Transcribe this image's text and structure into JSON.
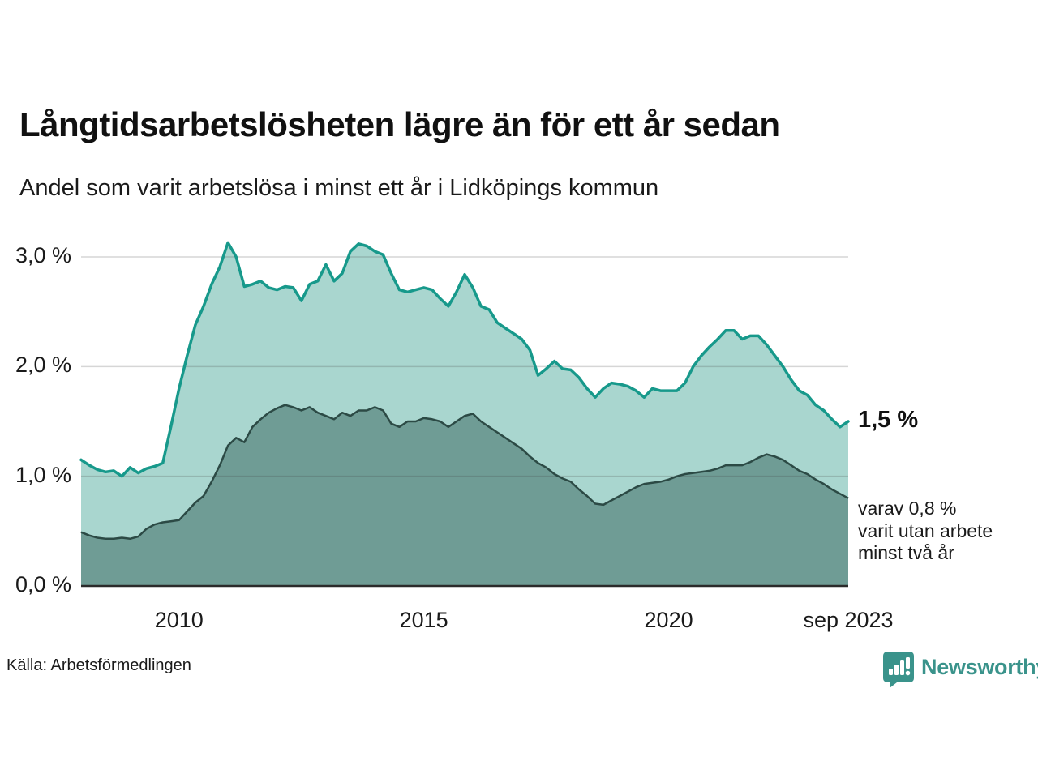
{
  "header": {
    "title": "Långtidsarbetslösheten lägre än för ett år sedan",
    "subtitle": "Andel som varit arbetslösa i minst ett år i Lidköpings kommun"
  },
  "chart_data": {
    "type": "area",
    "title": "Långtidsarbetslösheten lägre än för ett år sedan",
    "subtitle": "Andel som varit arbetslösa i minst ett år i Lidköpings kommun",
    "x_unit": "decimal_year_monthly",
    "x_range": [
      2008.0,
      2023.667
    ],
    "ylim": [
      0.0,
      3.3
    ],
    "grid": true,
    "colors": {
      "line_total": "#17998b",
      "fill_total": "#a9d6cf",
      "line_two_years": "#2c4a45",
      "fill_two_years": "#6f9c95",
      "gridline": "#d8d8d8",
      "baseline": "#2b2b2b",
      "brand_teal": "#3a938b"
    },
    "y_ticks": [
      {
        "value": 0.0,
        "label": "0,0 %"
      },
      {
        "value": 1.0,
        "label": "1,0 %"
      },
      {
        "value": 2.0,
        "label": "2,0 %"
      },
      {
        "value": 3.0,
        "label": "3,0 %"
      }
    ],
    "x_ticks": [
      {
        "value": 2010.0,
        "label": "2010"
      },
      {
        "value": 2015.0,
        "label": "2015"
      },
      {
        "value": 2020.0,
        "label": "2020"
      },
      {
        "value": 2023.667,
        "label": "sep 2023"
      }
    ],
    "x": [
      2008.0,
      2008.167,
      2008.333,
      2008.5,
      2008.667,
      2008.833,
      2009.0,
      2009.167,
      2009.333,
      2009.5,
      2009.667,
      2009.833,
      2010.0,
      2010.167,
      2010.333,
      2010.5,
      2010.667,
      2010.833,
      2011.0,
      2011.167,
      2011.333,
      2011.5,
      2011.667,
      2011.833,
      2012.0,
      2012.167,
      2012.333,
      2012.5,
      2012.667,
      2012.833,
      2013.0,
      2013.167,
      2013.333,
      2013.5,
      2013.667,
      2013.833,
      2014.0,
      2014.167,
      2014.333,
      2014.5,
      2014.667,
      2014.833,
      2015.0,
      2015.167,
      2015.333,
      2015.5,
      2015.667,
      2015.833,
      2016.0,
      2016.167,
      2016.333,
      2016.5,
      2016.667,
      2016.833,
      2017.0,
      2017.167,
      2017.333,
      2017.5,
      2017.667,
      2017.833,
      2018.0,
      2018.167,
      2018.333,
      2018.5,
      2018.667,
      2018.833,
      2019.0,
      2019.167,
      2019.333,
      2019.5,
      2019.667,
      2019.833,
      2020.0,
      2020.167,
      2020.333,
      2020.5,
      2020.667,
      2020.833,
      2021.0,
      2021.167,
      2021.333,
      2021.5,
      2021.667,
      2021.833,
      2022.0,
      2022.167,
      2022.333,
      2022.5,
      2022.667,
      2022.833,
      2023.0,
      2023.167,
      2023.333,
      2023.5,
      2023.667
    ],
    "series": [
      {
        "name": "Andel arbetslösa minst ett år",
        "end_label": "1,5 %",
        "values": [
          1.15,
          1.1,
          1.06,
          1.04,
          1.05,
          1.0,
          1.08,
          1.03,
          1.07,
          1.09,
          1.12,
          1.45,
          1.8,
          2.1,
          2.38,
          2.55,
          2.75,
          2.91,
          3.13,
          3.0,
          2.73,
          2.75,
          2.78,
          2.72,
          2.7,
          2.73,
          2.72,
          2.6,
          2.75,
          2.78,
          2.93,
          2.78,
          2.85,
          3.05,
          3.12,
          3.1,
          3.05,
          3.02,
          2.85,
          2.7,
          2.68,
          2.7,
          2.72,
          2.7,
          2.62,
          2.55,
          2.68,
          2.84,
          2.72,
          2.55,
          2.52,
          2.4,
          2.35,
          2.3,
          2.25,
          2.15,
          1.92,
          1.98,
          2.05,
          1.98,
          1.97,
          1.9,
          1.8,
          1.72,
          1.8,
          1.85,
          1.84,
          1.82,
          1.78,
          1.72,
          1.8,
          1.78,
          1.78,
          1.78,
          1.85,
          2.0,
          2.1,
          2.18,
          2.25,
          2.33,
          2.33,
          2.25,
          2.28,
          2.28,
          2.2,
          2.1,
          2.0,
          1.88,
          1.78,
          1.74,
          1.65,
          1.6,
          1.52,
          1.45,
          1.5
        ]
      },
      {
        "name": "Andel arbetslösa minst två år",
        "end_label": "varav 0,8 % varit utan arbete minst två år",
        "values": [
          0.49,
          0.46,
          0.44,
          0.43,
          0.43,
          0.44,
          0.43,
          0.45,
          0.52,
          0.56,
          0.58,
          0.59,
          0.6,
          0.68,
          0.76,
          0.82,
          0.95,
          1.1,
          1.28,
          1.35,
          1.31,
          1.45,
          1.52,
          1.58,
          1.62,
          1.65,
          1.63,
          1.6,
          1.63,
          1.58,
          1.55,
          1.52,
          1.58,
          1.55,
          1.6,
          1.6,
          1.63,
          1.6,
          1.48,
          1.45,
          1.5,
          1.5,
          1.53,
          1.52,
          1.5,
          1.45,
          1.5,
          1.55,
          1.57,
          1.5,
          1.45,
          1.4,
          1.35,
          1.3,
          1.25,
          1.18,
          1.12,
          1.08,
          1.02,
          0.98,
          0.95,
          0.88,
          0.82,
          0.75,
          0.74,
          0.78,
          0.82,
          0.86,
          0.9,
          0.93,
          0.94,
          0.95,
          0.97,
          1.0,
          1.02,
          1.03,
          1.04,
          1.05,
          1.07,
          1.1,
          1.1,
          1.1,
          1.13,
          1.17,
          1.2,
          1.18,
          1.15,
          1.1,
          1.05,
          1.02,
          0.97,
          0.93,
          0.88,
          0.84,
          0.8
        ]
      }
    ]
  },
  "annotations": {
    "end_value_label": "1,5 %",
    "secondary_line1": "varav 0,8 %",
    "secondary_line2": "varit utan arbete",
    "secondary_line3": "minst två år"
  },
  "footer": {
    "source": "Källa: Arbetsförmedlingen",
    "brand_name": "Newsworthy"
  }
}
